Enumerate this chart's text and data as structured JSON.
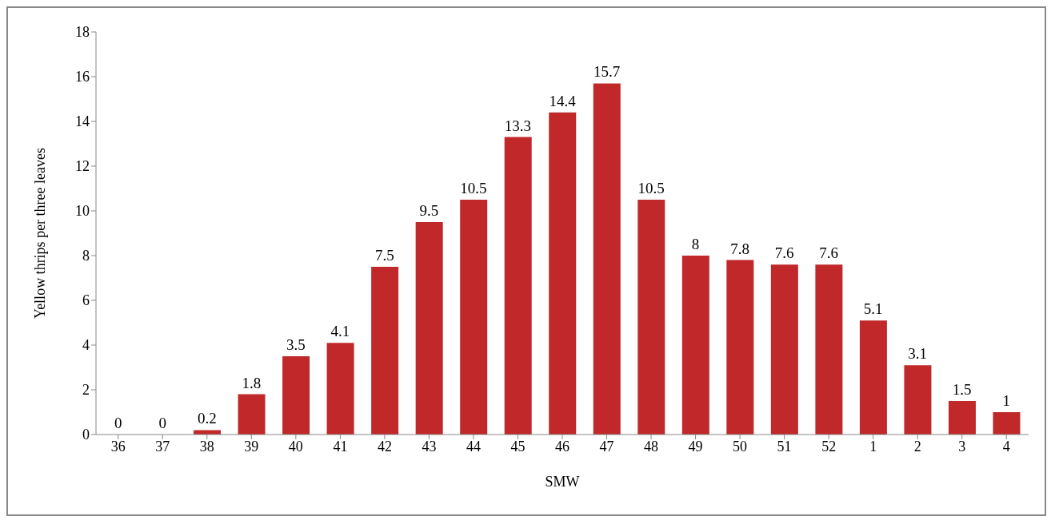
{
  "chart_data": {
    "type": "bar",
    "xlabel": "SMW",
    "ylabel": "Yellow thrips per three leaves",
    "categories": [
      "36",
      "37",
      "38",
      "39",
      "40",
      "41",
      "42",
      "43",
      "44",
      "45",
      "46",
      "47",
      "48",
      "49",
      "50",
      "51",
      "52",
      "1",
      "2",
      "3",
      "4"
    ],
    "values": [
      0,
      0,
      0.2,
      1.8,
      3.5,
      4.1,
      7.5,
      9.5,
      10.5,
      13.3,
      14.4,
      15.7,
      10.5,
      8,
      7.8,
      7.6,
      7.6,
      5.1,
      3.1,
      1.5,
      1
    ],
    "color": "#c0282a",
    "ylim": [
      0,
      18
    ],
    "yticks": [
      0,
      2,
      4,
      6,
      8,
      10,
      12,
      14,
      16,
      18
    ],
    "grid": false,
    "data_labels": true
  }
}
